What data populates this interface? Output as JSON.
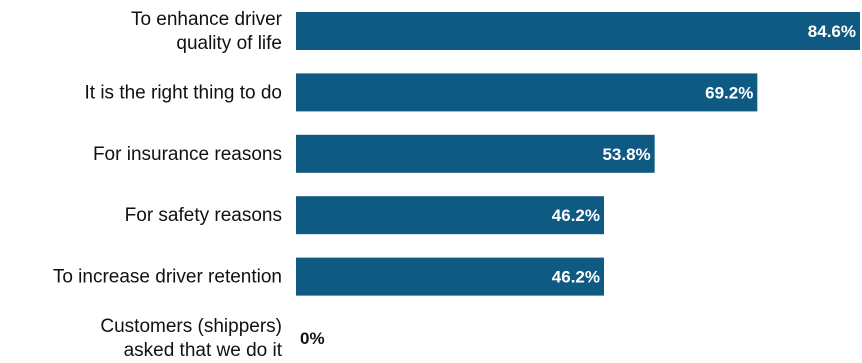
{
  "chart_data": {
    "type": "bar",
    "orientation": "horizontal",
    "categories": [
      [
        "To enhance driver",
        "quality of life"
      ],
      [
        "It is the right thing to do"
      ],
      [
        "For insurance reasons"
      ],
      [
        "For safety reasons"
      ],
      [
        "To increase driver retention"
      ],
      [
        "Customers (shippers)",
        "asked that we do it"
      ]
    ],
    "values": [
      84.6,
      69.2,
      53.8,
      46.2,
      46.2,
      0
    ],
    "value_labels": [
      "84.6%",
      "69.2%",
      "53.8%",
      "46.2%",
      "46.2%",
      "0%"
    ],
    "xlim": [
      0,
      84.6
    ],
    "grid": false,
    "legend": "none",
    "colors": {
      "bar": "#0f5a82",
      "label_inside": "#ffffff",
      "label_outside": "#111111"
    }
  }
}
